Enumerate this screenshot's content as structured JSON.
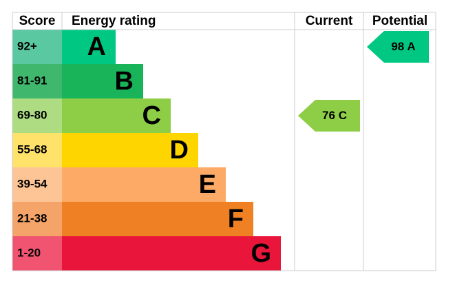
{
  "header": {
    "score": "Score",
    "rating": "Energy rating",
    "current": "Current",
    "potential": "Potential"
  },
  "bands": [
    {
      "score": "92+",
      "letter": "A",
      "color": "#00c781",
      "score_color": "#5ac9a1"
    },
    {
      "score": "81-91",
      "letter": "B",
      "color": "#19b459",
      "score_color": "#3fb86d"
    },
    {
      "score": "69-80",
      "letter": "C",
      "color": "#8dce46",
      "score_color": "#addc82"
    },
    {
      "score": "55-68",
      "letter": "D",
      "color": "#ffd500",
      "score_color": "#ffe26a"
    },
    {
      "score": "39-54",
      "letter": "E",
      "color": "#fcaa65",
      "score_color": "#fdc496"
    },
    {
      "score": "21-38",
      "letter": "F",
      "color": "#ef8023",
      "score_color": "#f4a468"
    },
    {
      "score": "1-20",
      "letter": "G",
      "color": "#e9153b",
      "score_color": "#f05470"
    }
  ],
  "current": {
    "value": 76,
    "letter": "C"
  },
  "potential": {
    "value": 98,
    "letter": "A"
  }
}
